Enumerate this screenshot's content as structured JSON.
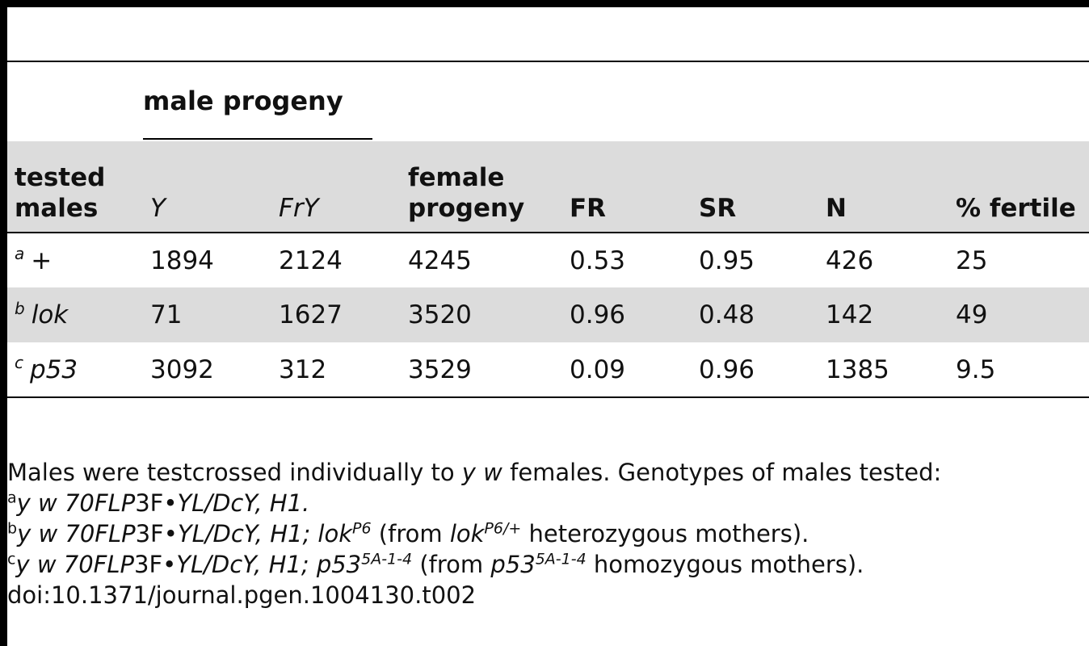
{
  "table": {
    "spanner_label": "male progeny",
    "headers": {
      "tested_males_line1": "tested",
      "tested_males_line2": "males",
      "y": "Y",
      "fry": "FrY",
      "female_line1": "female",
      "female_line2": "progeny",
      "fr": "FR",
      "sr": "SR",
      "n": "N",
      "pct_fertile": "% fertile"
    },
    "rows": [
      {
        "mark": "a",
        "genotype": "+",
        "genotype_italic": false,
        "y": "1894",
        "fry": "2124",
        "female": "4245",
        "fr": "0.53",
        "sr": "0.95",
        "n": "426",
        "pct": "25"
      },
      {
        "mark": "b",
        "genotype": "lok",
        "genotype_italic": true,
        "y": "71",
        "fry": "1627",
        "female": "3520",
        "fr": "0.96",
        "sr": "0.48",
        "n": "142",
        "pct": "49"
      },
      {
        "mark": "c",
        "genotype": "p53",
        "genotype_italic": true,
        "y": "3092",
        "fry": "312",
        "female": "3529",
        "fr": "0.09",
        "sr": "0.96",
        "n": "1385",
        "pct": "9.5"
      }
    ]
  },
  "notes": {
    "line1_a": "Males were testcrossed individually to ",
    "line1_b": "y w",
    "line1_c": " females. Genotypes of males tested:",
    "fa_mark": "a",
    "fa_geno_it": "y w 70FLP",
    "fa_mid": "3F•",
    "fa_geno2_it": "YL/DcY, H1.",
    "fb_mark": "b",
    "fb_geno_it": "y w 70FLP",
    "fb_mid": "3F•",
    "fb_geno2_it": "YL/DcY, H1; lok",
    "fb_sup1": "P6",
    "fb_text1": " (from ",
    "fb_lok_it": "lok",
    "fb_sup2": "P6/+",
    "fb_text2": " heterozygous mothers).",
    "fc_mark": "c",
    "fc_geno_it": "y w 70FLP",
    "fc_mid": "3F•",
    "fc_geno2_it": "YL/DcY, H1; p53",
    "fc_sup1": "5A-1-4",
    "fc_text1": " (from ",
    "fc_p53_it": "p53",
    "fc_sup2": "5A-1-4",
    "fc_text2": " homozygous mothers).",
    "doi": "doi:10.1371/journal.pgen.1004130.t002"
  }
}
